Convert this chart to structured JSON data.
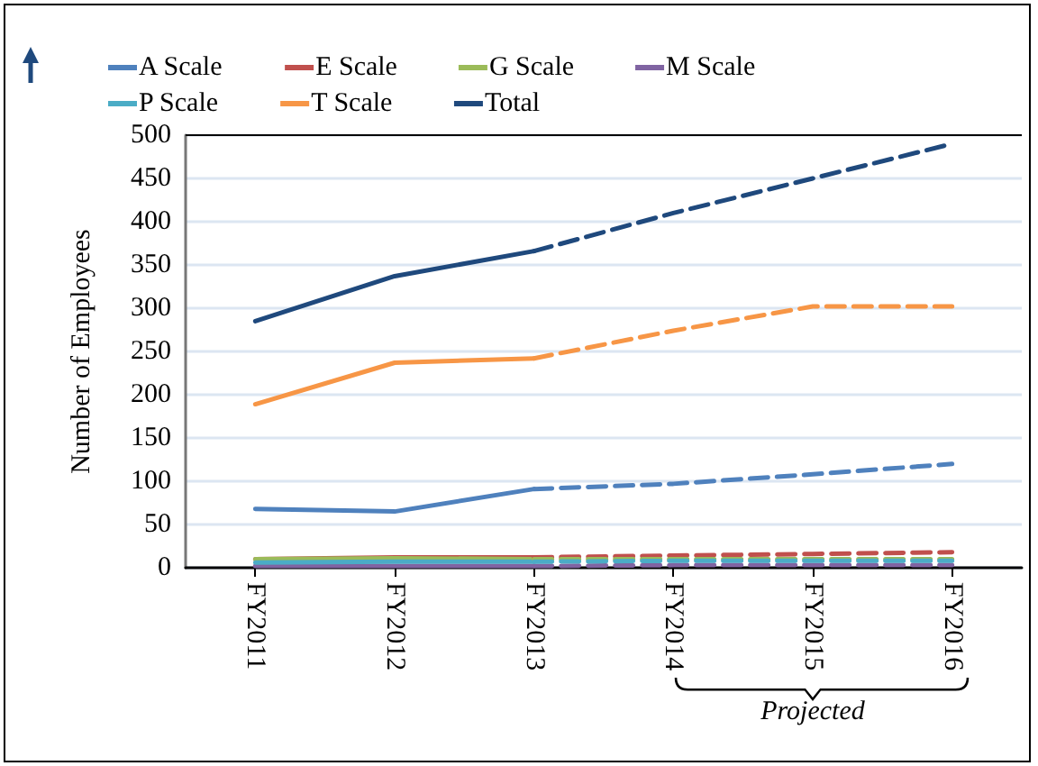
{
  "chart_data": {
    "type": "line",
    "ylabel": "Number of Employees",
    "categories": [
      "FY2011",
      "FY2012",
      "FY2013",
      "FY2014",
      "FY2015",
      "FY2016"
    ],
    "series": [
      {
        "name": "A Scale",
        "color": "#4f81bd",
        "values": [
          68,
          65,
          91,
          null,
          null,
          null
        ]
      },
      {
        "name": "E Scale",
        "color": "#c0504d",
        "values": [
          10,
          12,
          12,
          null,
          null,
          null
        ]
      },
      {
        "name": "G Scale",
        "color": "#9bbb59",
        "values": [
          10,
          11,
          10,
          null,
          null,
          null
        ]
      },
      {
        "name": "M Scale",
        "color": "#8064a2",
        "values": [
          2,
          2,
          2,
          null,
          null,
          null
        ]
      },
      {
        "name": "P Scale",
        "color": "#4bacc6",
        "values": [
          6,
          7,
          7,
          null,
          null,
          null
        ]
      },
      {
        "name": "T Scale",
        "color": "#f79646",
        "values": [
          189,
          237,
          242,
          null,
          null,
          null
        ]
      },
      {
        "name": "Total",
        "color": "#1f497d",
        "values": [
          285,
          337,
          366,
          null,
          null,
          null
        ]
      },
      {
        "color": "#4f81bd",
        "line_style": "dashed",
        "values": [
          null,
          null,
          91,
          97,
          108,
          120
        ]
      },
      {
        "color": "#c0504d",
        "line_style": "dashed",
        "values": [
          null,
          null,
          12,
          14,
          16,
          18
        ]
      },
      {
        "color": "#9bbb59",
        "line_style": "dashed",
        "values": [
          null,
          null,
          10,
          10,
          10,
          10
        ]
      },
      {
        "color": "#8064a2",
        "line_style": "dashed",
        "values": [
          null,
          null,
          2,
          3,
          3,
          3
        ]
      },
      {
        "color": "#4bacc6",
        "line_style": "dashed",
        "values": [
          null,
          null,
          7,
          8,
          8,
          8
        ]
      },
      {
        "color": "#f79646",
        "line_style": "dashed",
        "values": [
          null,
          null,
          242,
          274,
          302,
          302
        ]
      },
      {
        "color": "#1f497d",
        "line_style": "dashed",
        "values": [
          null,
          null,
          366,
          410,
          450,
          490
        ]
      }
    ],
    "ylim": [
      0,
      500
    ],
    "yticks": [
      0,
      50,
      100,
      150,
      200,
      250,
      300,
      350,
      400,
      450,
      500
    ],
    "annotations": [
      "Projected"
    ],
    "grid": "y",
    "legend": "top",
    "marker": "none",
    "line_style": "solid"
  }
}
